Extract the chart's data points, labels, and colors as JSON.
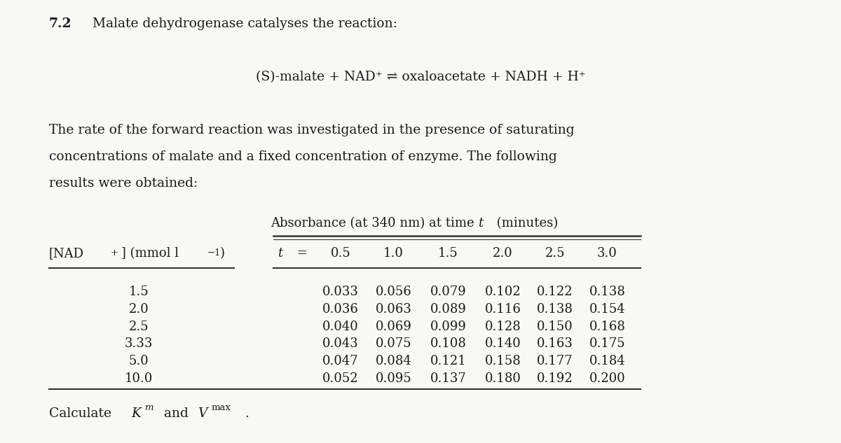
{
  "title_bold": "7.2",
  "title_rest": "  Malate dehydrogenase catalyses the reaction:",
  "reaction": "(S)-malate + NAD⁺ ⇌ oxaloacetate + NADH + H⁺",
  "para_line1": "The rate of the forward reaction was investigated in the presence of saturating",
  "para_line2": "concentrations of malate and a fixed concentration of enzyme. The following",
  "para_line3": "results were obtained:",
  "absorbance_header": "Absorbance (at 340 nm) at time  ",
  "absorbance_t": "t",
  "absorbance_rest": " (minutes)",
  "nad_label_pre": "[NAD",
  "nad_sup": "+",
  "nad_label_mid": "] (mmol l",
  "nad_sup2": "−1",
  "nad_label_post": ")",
  "t_label": "t",
  "t_eq": " = ",
  "time_values": [
    "0.5",
    "1.0",
    "1.5",
    "2.0",
    "2.5",
    "3.0"
  ],
  "nad_concentrations": [
    "1.5",
    "2.0",
    "2.5",
    "3.33",
    "5.0",
    "10.0"
  ],
  "table_data": [
    [
      "0.033",
      "0.056",
      "0.079",
      "0.102",
      "0.122",
      "0.138"
    ],
    [
      "0.036",
      "0.063",
      "0.089",
      "0.116",
      "0.138",
      "0.154"
    ],
    [
      "0.040",
      "0.069",
      "0.099",
      "0.128",
      "0.150",
      "0.168"
    ],
    [
      "0.043",
      "0.075",
      "0.108",
      "0.140",
      "0.163",
      "0.175"
    ],
    [
      "0.047",
      "0.084",
      "0.121",
      "0.158",
      "0.177",
      "0.184"
    ],
    [
      "0.052",
      "0.095",
      "0.137",
      "0.180",
      "0.192",
      "0.200"
    ]
  ],
  "footer_calc": "Calculate ",
  "footer_K": "K",
  "footer_m": "m",
  "footer_and": " and ",
  "footer_V": "V",
  "footer_max": "max",
  "footer_period": ".",
  "bg_color": "#f8f8f4",
  "text_color": "#1a1a1a",
  "font_size_main": 13.5,
  "font_size_table": 13.0,
  "font_size_small": 9.5
}
